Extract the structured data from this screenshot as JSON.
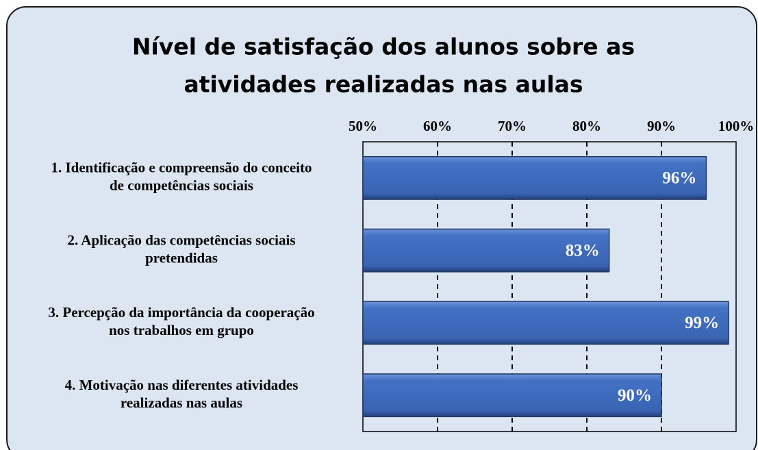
{
  "chart_data": {
    "type": "bar",
    "orientation": "horizontal",
    "title": [
      "Nível de satisfação dos alunos sobre as",
      "atividades realizadas nas aulas"
    ],
    "categories": [
      [
        "1. Identificação e compreensão do conceito",
        "de competências sociais"
      ],
      [
        "2. Aplicação das competências sociais",
        "pretendidas"
      ],
      [
        "3. Percepção da importância da cooperação",
        "nos trabalhos em grupo"
      ],
      [
        "4. Motivação nas diferentes atividades",
        "realizadas nas aulas"
      ]
    ],
    "values": [
      96,
      83,
      99,
      90
    ],
    "value_labels": [
      "96%",
      "83%",
      "99%",
      "90%"
    ],
    "color": "#4472c4",
    "xlim": [
      50,
      100
    ],
    "xticks": [
      {
        "value": 50,
        "label": "50%"
      },
      {
        "value": 60,
        "label": "60%"
      },
      {
        "value": 70,
        "label": "70%"
      },
      {
        "value": 80,
        "label": "80%"
      },
      {
        "value": 90,
        "label": "90%"
      },
      {
        "value": 100,
        "label": "100%"
      }
    ],
    "grid": true
  }
}
